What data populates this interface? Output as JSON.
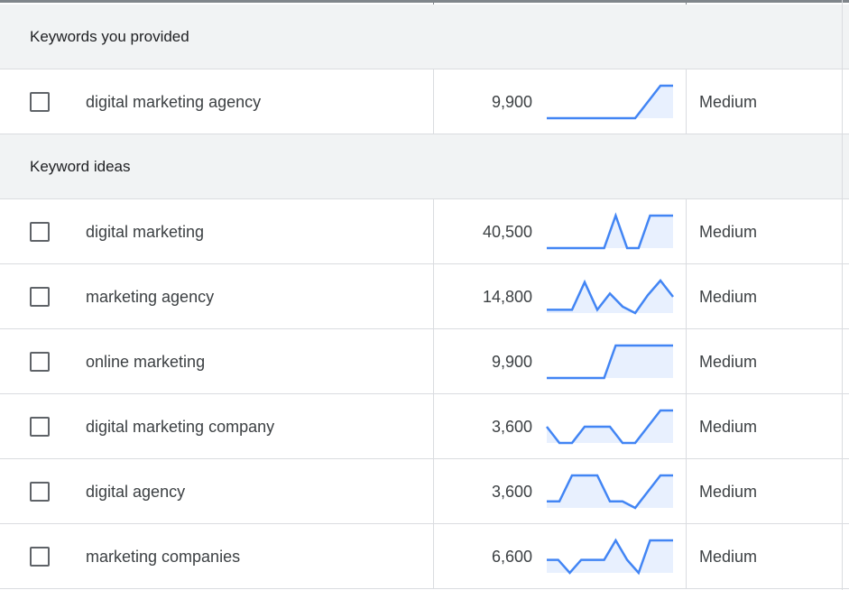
{
  "groups": [
    {
      "label": "Keywords you provided",
      "rows": [
        {
          "keyword": "digital marketing agency",
          "volume": "9,900",
          "competition": "Medium",
          "trend": [
            0,
            0,
            0,
            0,
            0,
            0,
            0,
            0,
            0.5,
            1,
            1
          ]
        }
      ]
    },
    {
      "label": "Keyword ideas",
      "rows": [
        {
          "keyword": "digital marketing",
          "volume": "40,500",
          "competition": "Medium",
          "trend": [
            0,
            0,
            0,
            0,
            0,
            0,
            1,
            0,
            0,
            1,
            1,
            1
          ]
        },
        {
          "keyword": "marketing agency",
          "volume": "14,800",
          "competition": "Medium",
          "trend": [
            0.1,
            0.1,
            0.1,
            0.95,
            0.1,
            0.6,
            0.2,
            0,
            0.55,
            1,
            0.5
          ]
        },
        {
          "keyword": "online marketing",
          "volume": "9,900",
          "competition": "Medium",
          "trend": [
            0,
            0,
            0,
            0,
            0,
            0,
            1,
            1,
            1,
            1,
            1,
            1
          ]
        },
        {
          "keyword": "digital marketing company",
          "volume": "3,600",
          "competition": "Medium",
          "trend": [
            0.5,
            0,
            0,
            0.5,
            0.5,
            0.5,
            0,
            0,
            0.5,
            1,
            1
          ]
        },
        {
          "keyword": "digital agency",
          "volume": "3,600",
          "competition": "Medium",
          "trend": [
            0.2,
            0.2,
            1,
            1,
            1,
            0.2,
            0.2,
            0,
            0.5,
            1,
            1
          ]
        },
        {
          "keyword": "marketing companies",
          "volume": "6,600",
          "competition": "Medium",
          "trend": [
            0.4,
            0.4,
            0,
            0.4,
            0.4,
            0.4,
            1,
            0.4,
            0,
            1,
            1,
            1
          ]
        }
      ]
    }
  ],
  "colors": {
    "trend_line": "#4285f4",
    "trend_fill": "#e8f0fe",
    "group_background": "#f1f3f4"
  },
  "icons": {
    "checkbox": "checkbox-icon"
  }
}
